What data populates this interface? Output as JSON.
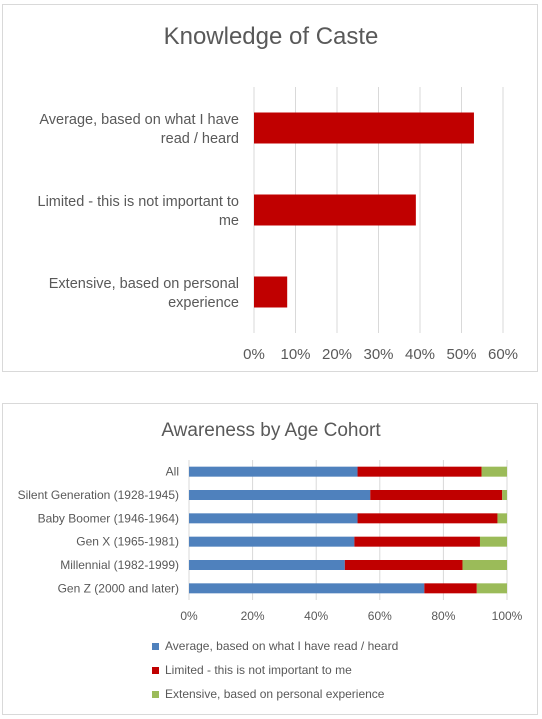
{
  "chart_data": [
    {
      "type": "bar",
      "orientation": "horizontal",
      "title": "Knowledge of Caste",
      "categories": [
        [
          "Average, based on what I have",
          "read / heard"
        ],
        [
          "Limited - this is not important to",
          "me"
        ],
        [
          "Extensive, based on personal",
          "experience"
        ]
      ],
      "values": [
        0.53,
        0.39,
        0.08
      ],
      "xlim": [
        0,
        0.6
      ],
      "xticks": [
        "0%",
        "10%",
        "20%",
        "30%",
        "40%",
        "50%",
        "60%"
      ],
      "grid": true,
      "color": "#c00000"
    },
    {
      "type": "bar",
      "orientation": "horizontal",
      "stacked": "100%",
      "title": "Awareness by Age Cohort",
      "categories": [
        "All",
        "Silent Generation (1928-1945)",
        "Baby Boomer (1946-1964)",
        "Gen X (1965-1981)",
        "Millennial (1982-1999)",
        "Gen Z (2000 and later)"
      ],
      "series": [
        {
          "name": "Average, based on what I have read / heard",
          "color": "#4f81bd",
          "values": [
            0.53,
            0.57,
            0.53,
            0.52,
            0.49,
            0.74
          ]
        },
        {
          "name": "Limited - this is not important to me",
          "color": "#c00000",
          "values": [
            0.39,
            0.415,
            0.44,
            0.395,
            0.37,
            0.165
          ]
        },
        {
          "name": "Extensive, based on personal experience",
          "color": "#9bbb59",
          "values": [
            0.08,
            0.015,
            0.03,
            0.085,
            0.14,
            0.095
          ]
        }
      ],
      "xlim": [
        0,
        1
      ],
      "xticks": [
        "0%",
        "20%",
        "40%",
        "60%",
        "80%",
        "100%"
      ],
      "grid": true,
      "legend": "bottom"
    }
  ]
}
